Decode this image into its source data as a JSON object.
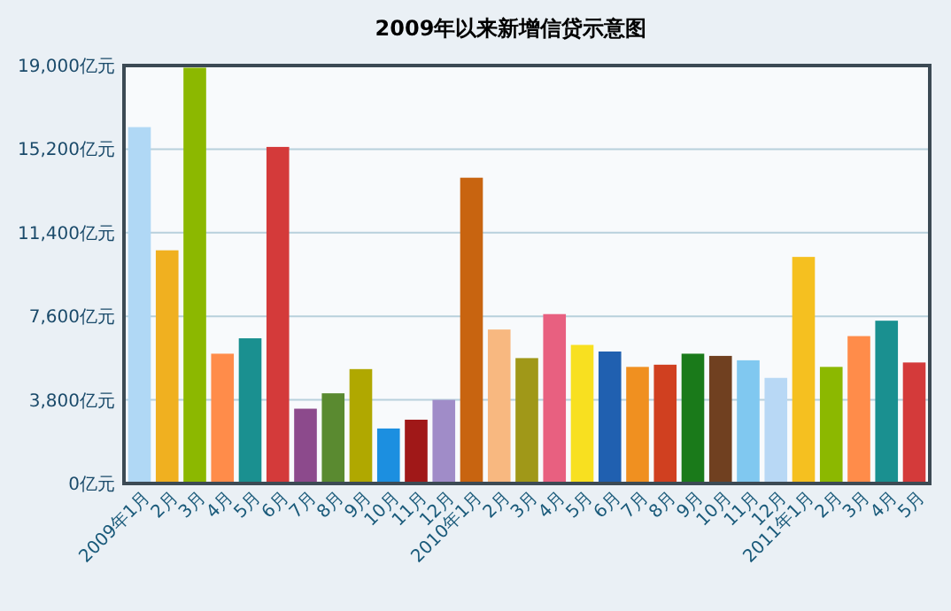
{
  "chart_data": {
    "type": "bar",
    "title": "2009年以来新增信贷示意图",
    "categories": [
      "2009年1月",
      "2月",
      "3月",
      "4月",
      "5月",
      "6月",
      "7月",
      "8月",
      "9月",
      "10月",
      "11月",
      "12月",
      "2010年1月",
      "2月",
      "3月",
      "4月",
      "5月",
      "6月",
      "7月",
      "8月",
      "9月",
      "10月",
      "11月",
      "12月",
      "2011年1月",
      "2月",
      "3月",
      "4月",
      "5月"
    ],
    "values": [
      16200,
      10600,
      18900,
      5900,
      6600,
      15300,
      3400,
      4100,
      5200,
      2500,
      2900,
      3800,
      13900,
      7000,
      5700,
      7700,
      6300,
      6000,
      5300,
      5400,
      5900,
      5800,
      5600,
      4800,
      10300,
      5300,
      6700,
      7400,
      5500
    ],
    "colors": [
      "#b0d8f5",
      "#f0b020",
      "#8cb800",
      "#ff8c4a",
      "#1a9090",
      "#d43a3a",
      "#8c4a8c",
      "#5a8a30",
      "#b0a800",
      "#1c8fe0",
      "#a01818",
      "#a08cc8",
      "#c86410",
      "#f8b880",
      "#a09818",
      "#e86080",
      "#f8e020",
      "#2060b0",
      "#f09020",
      "#d04020",
      "#1a7a1a",
      "#704020",
      "#80c8f0",
      "#b8d8f5",
      "#f5c020",
      "#8cb800",
      "#ff8c4a",
      "#1a9090",
      "#d43a3a"
    ],
    "ylim": [
      0,
      19000
    ],
    "yticks": [
      {
        "value": 0,
        "label": "0亿元"
      },
      {
        "value": 3800,
        "label": "3,800亿元"
      },
      {
        "value": 7600,
        "label": "7,600亿元"
      },
      {
        "value": 11400,
        "label": "11,400亿元"
      },
      {
        "value": 15200,
        "label": "15,200亿元"
      },
      {
        "value": 19000,
        "label": "19,000亿元"
      }
    ],
    "grid": "y"
  }
}
